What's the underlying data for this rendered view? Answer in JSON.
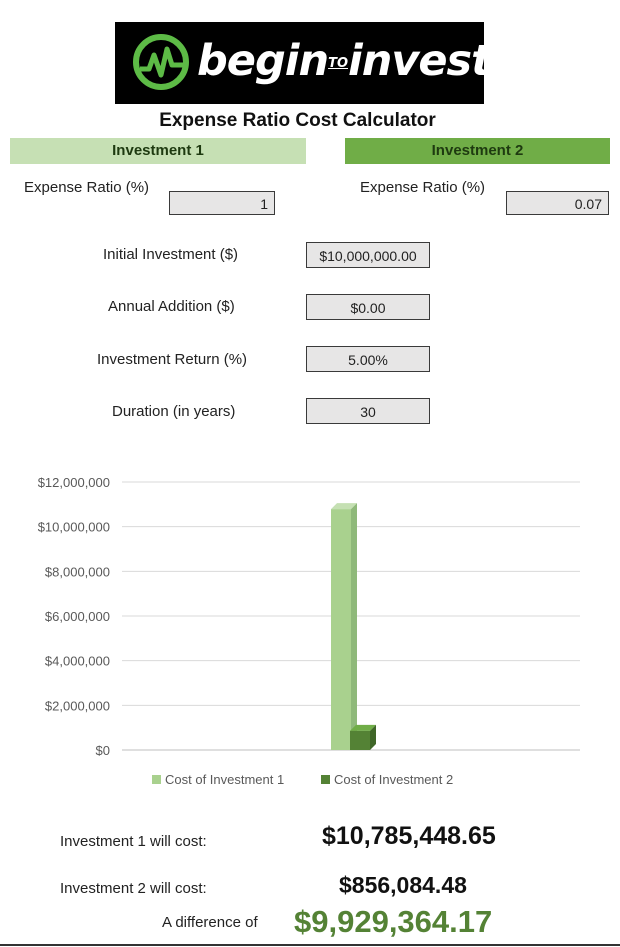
{
  "logo": {
    "begin": "begin",
    "to": "TO",
    "invest": "invest"
  },
  "title": "Expense Ratio Cost Calculator",
  "investment1": {
    "header": "Investment 1",
    "expense_label": "Expense Ratio (%)",
    "expense_value": "1"
  },
  "investment2": {
    "header": "Investment 2",
    "expense_label": "Expense Ratio (%)",
    "expense_value": "0.07"
  },
  "inputs": {
    "initial_label": "Initial Investment ($)",
    "initial_value": "$10,000,000.00",
    "annual_label": "Annual Addition ($)",
    "annual_value": "$0.00",
    "return_label": "Investment Return (%)",
    "return_value": "5.00%",
    "duration_label": "Duration (in years)",
    "duration_value": "30"
  },
  "chart_data": {
    "type": "bar",
    "categories": [
      ""
    ],
    "series": [
      {
        "name": "Cost of Investment 1",
        "values": [
          10785448.65
        ],
        "color": "#a9d18e"
      },
      {
        "name": "Cost of Investment 2",
        "values": [
          856084.48
        ],
        "color": "#548235"
      }
    ],
    "ylim": [
      0,
      12000000
    ],
    "y_ticks": [
      "$0",
      "$2,000,000",
      "$4,000,000",
      "$6,000,000",
      "$8,000,000",
      "$10,000,000",
      "$12,000,000"
    ],
    "y_tick_values": [
      0,
      2000000,
      4000000,
      6000000,
      8000000,
      10000000,
      12000000
    ],
    "grid": true,
    "legend": "bottom"
  },
  "results": {
    "inv1_label": "Investment 1 will cost:",
    "inv1_value": "$10,785,448.65",
    "inv2_label": "Investment 2 will cost:",
    "inv2_value": "$856,084.48",
    "diff_label": "A difference of",
    "diff_value": "$9,929,364.17"
  }
}
